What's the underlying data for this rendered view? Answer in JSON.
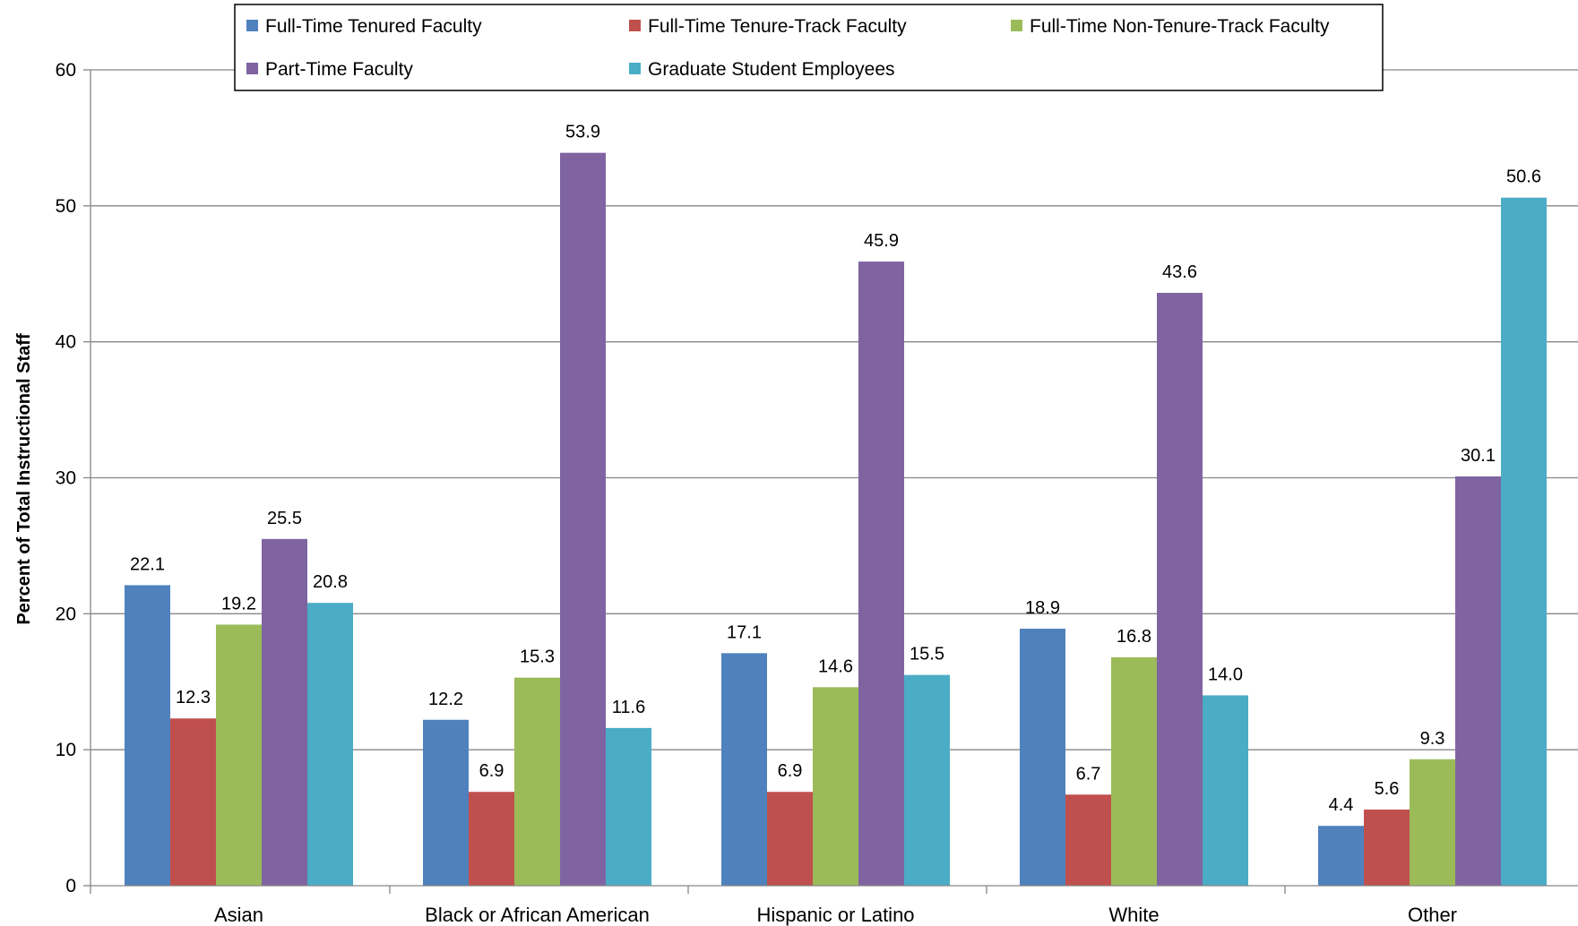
{
  "chart_data": {
    "type": "bar",
    "title": "",
    "xlabel": "",
    "ylabel": "Percent of Total Instructional Staff",
    "ylim": [
      0,
      60
    ],
    "yticks": [
      0,
      10,
      20,
      30,
      40,
      50,
      60
    ],
    "grid": true,
    "legend_position": "top",
    "categories": [
      "Asian",
      "Black or African American",
      "Hispanic or Latino",
      "White",
      "Other"
    ],
    "series": [
      {
        "name": "Full-Time Tenured Faculty",
        "color": "#4f81bd",
        "values": [
          22.1,
          12.2,
          17.1,
          18.9,
          4.4
        ]
      },
      {
        "name": "Full-Time Tenure-Track Faculty",
        "color": "#c0504d",
        "values": [
          12.3,
          6.9,
          6.9,
          6.7,
          5.6
        ]
      },
      {
        "name": "Full-Time Non-Tenure-Track Faculty",
        "color": "#9bbb59",
        "values": [
          19.2,
          15.3,
          14.6,
          16.8,
          9.3
        ]
      },
      {
        "name": "Part-Time Faculty",
        "color": "#8064a2",
        "values": [
          25.5,
          53.9,
          45.9,
          43.6,
          30.1
        ]
      },
      {
        "name": "Graduate Student Employees",
        "color": "#4bacc6",
        "values": [
          20.8,
          11.6,
          15.5,
          14.0,
          50.6
        ]
      }
    ]
  }
}
